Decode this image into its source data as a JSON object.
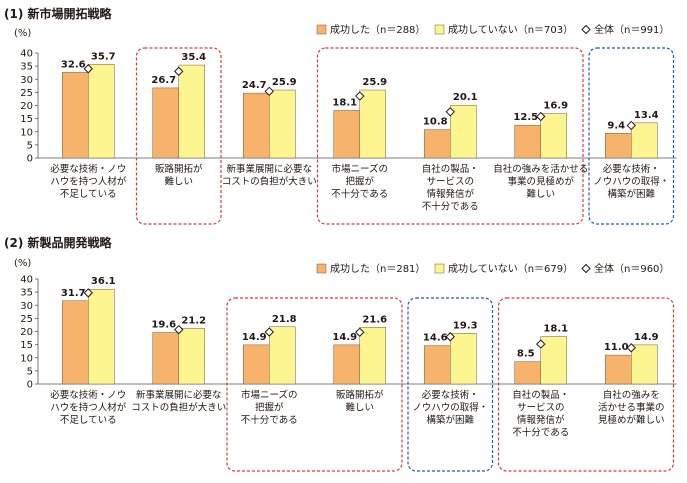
{
  "chart_data": [
    {
      "type": "bar",
      "title": "(1) 新市場開拓戦略",
      "ylabel": "(%)",
      "ylim": [
        0,
        40
      ],
      "yticks": [
        0,
        5,
        10,
        15,
        20,
        25,
        30,
        35,
        40
      ],
      "legend_position": "top-right",
      "categories": [
        [
          "必要な技術・ノウ",
          "ハウを持つ人材が",
          "不足している"
        ],
        [
          "販路開拓が",
          "難しい"
        ],
        [
          "新事業展開に必要な",
          "コストの負担が大きい"
        ],
        [
          "市場ニーズの",
          "把握が",
          "不十分である"
        ],
        [
          "自社の製品・",
          "サービスの",
          "情報発信が",
          "不十分である"
        ],
        [
          "自社の強みを活かせる",
          "事業の見極めが",
          "難しい"
        ],
        [
          "必要な技術・",
          "ノウハウの取得・",
          "構築が困難"
        ]
      ],
      "series": [
        {
          "name": "成功した（n＝288）",
          "values": [
            32.6,
            26.7,
            24.7,
            18.1,
            10.8,
            12.5,
            9.4
          ],
          "color": "#f7b36b"
        },
        {
          "name": "成功していない（n＝703）",
          "values": [
            35.7,
            35.4,
            25.9,
            25.9,
            20.1,
            16.9,
            13.4
          ],
          "color": "#fdf58f"
        },
        {
          "name": "全体（n＝991）",
          "values": [
            34.0,
            33.0,
            25.4,
            23.6,
            17.6,
            15.8,
            12.4
          ],
          "marker": "diamond"
        }
      ],
      "highlight_boxes": [
        {
          "categories": [
            1
          ],
          "color": "#e0383c"
        },
        {
          "categories": [
            3,
            4,
            5
          ],
          "color": "#e0383c"
        },
        {
          "categories": [
            6
          ],
          "color": "#1f5fa8"
        }
      ]
    },
    {
      "type": "bar",
      "title": "(2) 新製品開発戦略",
      "ylabel": "(%)",
      "ylim": [
        0,
        40
      ],
      "yticks": [
        0,
        5,
        10,
        15,
        20,
        25,
        30,
        35,
        40
      ],
      "legend_position": "top-right",
      "categories": [
        [
          "必要な技術・ノウ",
          "ハウを持つ人材が",
          "不足している"
        ],
        [
          "新事業展開に必要な",
          "コストの負担が大きい"
        ],
        [
          "市場ニーズの",
          "把握が",
          "不十分である"
        ],
        [
          "販路開拓が",
          "難しい"
        ],
        [
          "必要な技術・",
          "ノウハウの取得・",
          "構築が困難"
        ],
        [
          "自社の製品・",
          "サービスの",
          "情報発信が",
          "不十分である"
        ],
        [
          "自社の強みを",
          "活かせる事業の",
          "見極めが難しい"
        ]
      ],
      "series": [
        {
          "name": "成功した（n＝281）",
          "values": [
            31.7,
            19.6,
            14.9,
            14.9,
            14.6,
            8.5,
            11.0
          ],
          "color": "#f7b36b"
        },
        {
          "name": "成功していない（n＝679）",
          "values": [
            36.1,
            21.2,
            21.8,
            21.6,
            19.3,
            18.1,
            14.9
          ],
          "color": "#fdf58f"
        },
        {
          "name": "全体（n＝960）",
          "values": [
            34.7,
            20.7,
            19.8,
            19.7,
            18.0,
            15.2,
            13.8
          ],
          "marker": "diamond"
        }
      ],
      "highlight_boxes": [
        {
          "categories": [
            2,
            3
          ],
          "color": "#e0383c"
        },
        {
          "categories": [
            4
          ],
          "color": "#1f5fa8"
        },
        {
          "categories": [
            5,
            6
          ],
          "color": "#e0383c"
        }
      ]
    }
  ]
}
